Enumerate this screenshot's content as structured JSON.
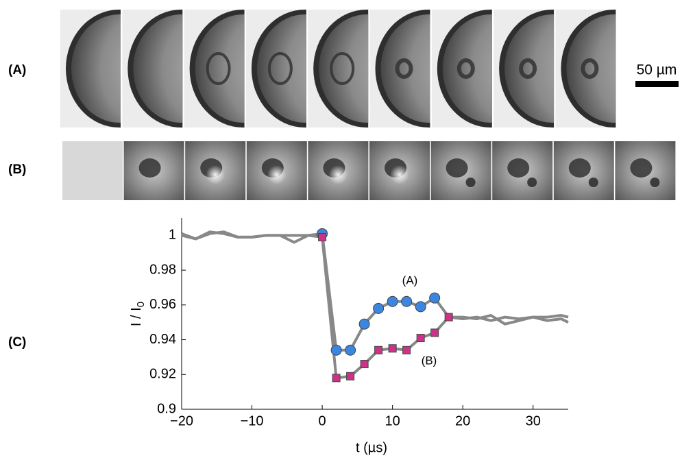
{
  "panel_labels": [
    "(A)",
    "(B)",
    "(C)"
  ],
  "scale_bar": "50 µm",
  "chart_data": {
    "type": "line",
    "xlabel": "t (µs)",
    "ylabel": {
      "text": "I / I",
      "sub": "0"
    },
    "xlim": [
      -20,
      35
    ],
    "xticks": [
      {
        "value": -20,
        "label": "−20"
      },
      {
        "value": -10,
        "label": "−10"
      },
      0,
      10,
      20,
      30
    ],
    "ylim": [
      0.9,
      1.01
    ],
    "yticks": [
      0.9,
      0.92,
      0.94,
      0.96,
      0.98,
      1
    ],
    "line_color": "#888888",
    "x": [
      -20,
      -18,
      -16,
      -14,
      -12,
      -10,
      -8,
      -6,
      -4,
      -2,
      0,
      2,
      4,
      6,
      8,
      10,
      12,
      14,
      16,
      18,
      20,
      22,
      24,
      26,
      28,
      30,
      32,
      34,
      35
    ],
    "series": [
      {
        "name": "(A)",
        "color": "#3d86df",
        "marker": "circle",
        "marker_xrange": [
          0,
          16
        ],
        "values": [
          1.0,
          0.998,
          1.002,
          1.001,
          0.999,
          0.999,
          1.0,
          1.0,
          0.996,
          1.0,
          1.001,
          0.934,
          0.934,
          0.949,
          0.958,
          0.962,
          0.962,
          0.959,
          0.964,
          0.953,
          0.953,
          0.952,
          0.954,
          0.949,
          0.951,
          0.953,
          0.951,
          0.952,
          0.95
        ]
      },
      {
        "name": "(B)",
        "color": "#cc3388",
        "marker": "square",
        "marker_xrange": [
          0,
          18
        ],
        "values": [
          1.001,
          0.998,
          1.001,
          1.002,
          0.999,
          0.999,
          1.0,
          1.0,
          1.0,
          1.0,
          0.999,
          0.918,
          0.919,
          0.926,
          0.934,
          0.935,
          0.934,
          0.941,
          0.944,
          0.953,
          0.952,
          0.953,
          0.951,
          0.953,
          0.952,
          0.953,
          0.953,
          0.954,
          0.953
        ]
      }
    ]
  }
}
